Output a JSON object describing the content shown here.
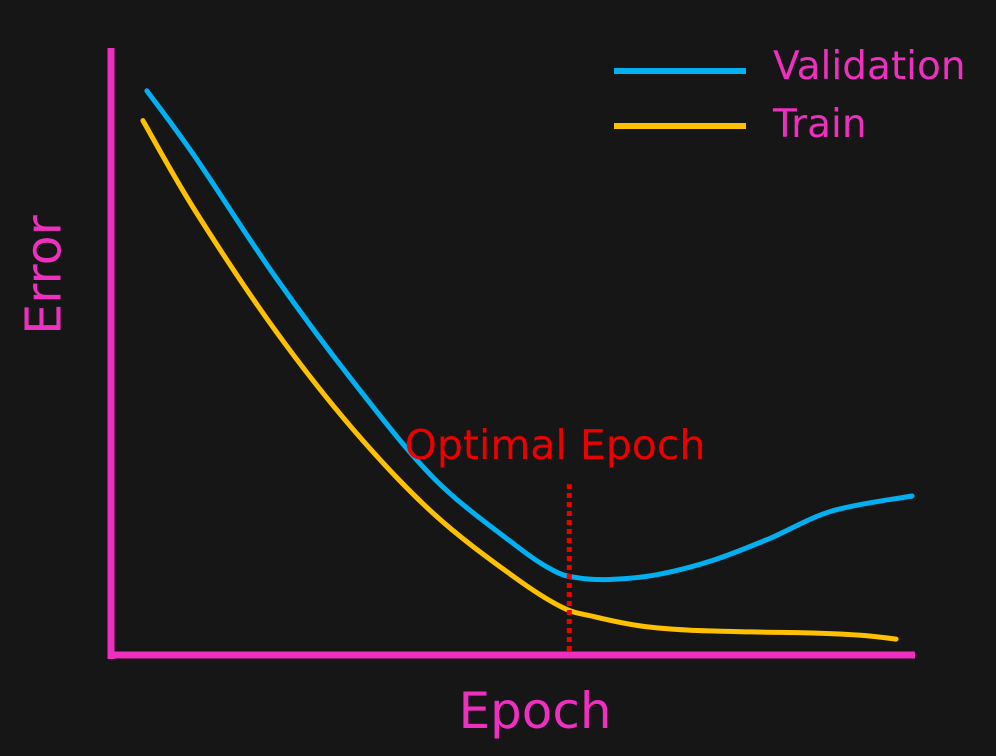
{
  "colors": {
    "background": "#161616",
    "axis": "#ee2fbf",
    "label": "#ee2fbf",
    "annotation": "#ee0000"
  },
  "chart_data": {
    "type": "line",
    "title": "",
    "xlabel": "Epoch",
    "ylabel": "Error",
    "xlim": [
      0,
      100
    ],
    "ylim": [
      0,
      100
    ],
    "grid": false,
    "legend_position": "top-right",
    "series": [
      {
        "name": "Validation",
        "color": "#00b0f0",
        "x": [
          4,
          10,
          20,
          30,
          40,
          50,
          55,
          58,
          62,
          68,
          75,
          82,
          90,
          100
        ],
        "y": [
          94,
          83,
          63,
          45,
          29,
          18,
          13.5,
          12.3,
          12,
          12.8,
          15.2,
          18.8,
          23.5,
          26
        ]
      },
      {
        "name": "Train",
        "color": "#ffc000",
        "x": [
          3.5,
          10,
          20,
          30,
          40,
          50,
          56,
          60,
          66,
          72,
          80,
          88,
          94,
          98
        ],
        "y": [
          89,
          74,
          54,
          37,
          23,
          12.5,
          7.4,
          5.8,
          4.2,
          3.5,
          3.2,
          3.0,
          2.6,
          2.0
        ]
      }
    ],
    "annotations": [
      {
        "type": "vline",
        "label": "Optimal Epoch",
        "x": 57,
        "y_from": 0,
        "y_to": 28,
        "color": "#ee0000",
        "style": "dotted"
      }
    ]
  }
}
